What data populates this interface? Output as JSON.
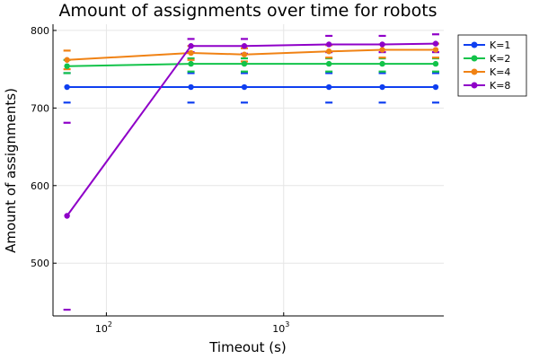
{
  "chart_data": {
    "type": "line",
    "title": "Amount of assignments over time for robots",
    "xlabel": "Timeout (s)",
    "ylabel": "Amount of assignments)",
    "xscale": "log",
    "xlim": [
      50,
      8000
    ],
    "ylim": [
      432,
      808
    ],
    "x_ticks": [
      {
        "value": 100,
        "base": "10",
        "exp": "2"
      },
      {
        "value": 1000,
        "base": "10",
        "exp": "3"
      }
    ],
    "y_ticks": [
      500,
      600,
      700,
      800
    ],
    "grid": true,
    "legend_position": "outside-top-right",
    "x": [
      60,
      300,
      600,
      1800,
      3600,
      7200
    ],
    "series": [
      {
        "name": "K=1",
        "color": "#0f3ff0",
        "values": [
          727,
          727,
          727,
          727,
          727,
          727
        ],
        "err_low": [
          707,
          707,
          707,
          707,
          707,
          707
        ],
        "err_high": [
          745,
          745,
          745,
          745,
          745,
          745
        ]
      },
      {
        "name": "K=2",
        "color": "#13c34a",
        "values": [
          754,
          757,
          757,
          757,
          757,
          757
        ],
        "err_low": [
          745,
          747,
          747,
          747,
          747,
          747
        ],
        "err_high": [
          762,
          764,
          764,
          764,
          764,
          764
        ]
      },
      {
        "name": "K=4",
        "color": "#f08214",
        "values": [
          762,
          771,
          769,
          773,
          775,
          775
        ],
        "err_low": [
          750,
          762,
          760,
          765,
          765,
          765
        ],
        "err_high": [
          774,
          780,
          777,
          781,
          782,
          783
        ]
      },
      {
        "name": "K=8",
        "color": "#8f00c8",
        "values": [
          561,
          780,
          780,
          782,
          782,
          783
        ],
        "err_low": [
          440,
          772,
          770,
          772,
          772,
          772
        ],
        "err_high": [
          681,
          789,
          789,
          793,
          793,
          795
        ]
      }
    ]
  }
}
